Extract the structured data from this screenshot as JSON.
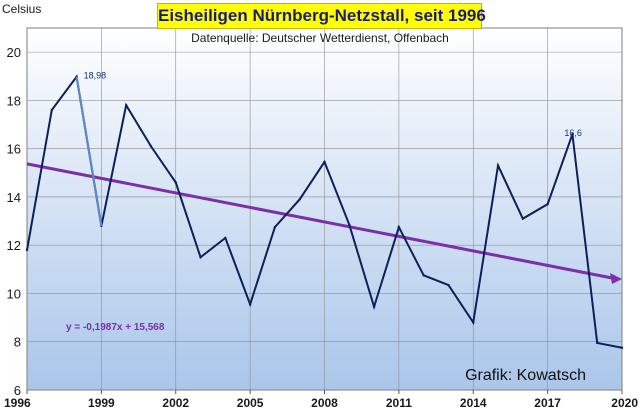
{
  "chart_data": {
    "type": "line",
    "title": "Eisheiligen Nürnberg-Netzstall, seit 1996",
    "subtitle": "Datenquelle: Deutscher Wetterdienst, Offenbach",
    "ylabel": "Celsius",
    "xlabel": "",
    "credit": "Grafik: Kowatsch",
    "xlim": [
      1996,
      2020
    ],
    "ylim": [
      6,
      21
    ],
    "x_ticks": [
      "1996",
      "1999",
      "2002",
      "2005",
      "2008",
      "2011",
      "2014",
      "2017",
      "2020"
    ],
    "y_ticks": [
      "6",
      "8",
      "10",
      "12",
      "14",
      "16",
      "18",
      "20"
    ],
    "grid": true,
    "series": [
      {
        "color": "#0f1f5a",
        "x": [
          1996,
          1997,
          1998,
          1999,
          2000,
          2001,
          2002,
          2003,
          2004,
          2005,
          2006,
          2007,
          2008,
          2009,
          2010,
          2011,
          2012,
          2013,
          2014,
          2015,
          2016,
          2017,
          2018,
          2019,
          2020
        ],
        "values": [
          11.8,
          17.6,
          18.98,
          12.8,
          17.8,
          16.1,
          14.6,
          11.5,
          12.3,
          9.55,
          12.75,
          13.9,
          15.45,
          12.85,
          9.45,
          12.75,
          10.75,
          10.35,
          8.8,
          15.3,
          13.1,
          13.7,
          16.6,
          7.95,
          7.75
        ]
      }
    ],
    "highlight_segment": {
      "x": [
        1998,
        1999
      ],
      "color": "#5f88c8"
    },
    "trendline": {
      "color": "#7b2fa8",
      "slope": -0.1987,
      "intercept": 15.568,
      "x_start": 1996,
      "x_end": 2020,
      "equation": "y = -0,1987x + 15,568"
    },
    "annotations": [
      {
        "x": 1998,
        "y": 18.98,
        "text": "18,98",
        "color": "#1a2f7a"
      },
      {
        "x": 2018,
        "y": 16.6,
        "text": "16,6",
        "color": "#1a2f7a"
      }
    ]
  }
}
